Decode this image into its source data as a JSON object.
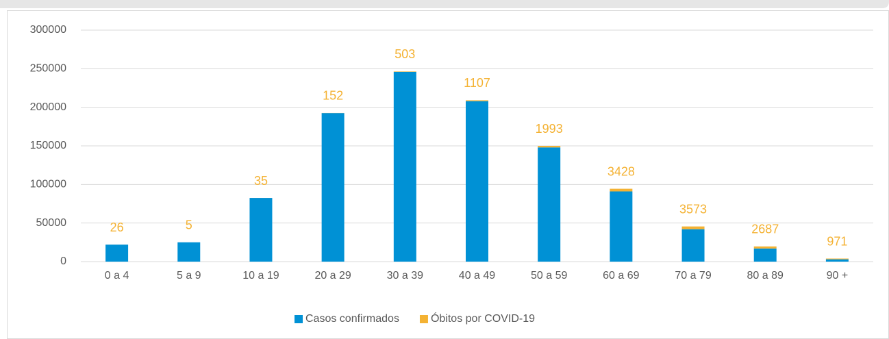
{
  "chart_data": {
    "type": "stacked_bar",
    "categories": [
      "0 a 4",
      "5 a 9",
      "10 a 19",
      "20 a 29",
      "30 a 39",
      "40 a 49",
      "50 a 59",
      "60 a 69",
      "70 a 79",
      "80 a 89",
      "90 +"
    ],
    "series": [
      {
        "name": "Casos confirmados",
        "color": "#0091d5",
        "values": [
          22000,
          25000,
          82500,
          192500,
          246000,
          208000,
          148000,
          91000,
          42000,
          17000,
          3000
        ]
      },
      {
        "name": "Óbitos por COVID-19",
        "color": "#f4b233",
        "values": [
          26,
          5,
          35,
          152,
          503,
          1107,
          1993,
          3428,
          3573,
          2687,
          971
        ]
      }
    ],
    "ylim": [
      0,
      300000
    ],
    "yticks": [
      0,
      50000,
      100000,
      150000,
      200000,
      250000,
      300000
    ],
    "grid": true,
    "legend": "bottom"
  }
}
